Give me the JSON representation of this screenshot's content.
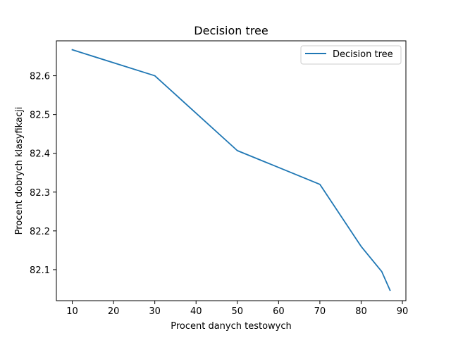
{
  "chart_data": {
    "type": "line",
    "title": "Decision tree",
    "xlabel": "Procent danych testowych",
    "ylabel": "Procent dobrych klasyfikacji",
    "xlim": [
      6.15,
      90.85
    ],
    "ylim": [
      82.02,
      82.69
    ],
    "xticks": [
      10,
      20,
      30,
      40,
      50,
      60,
      70,
      80,
      90
    ],
    "yticks": [
      82.1,
      82.2,
      82.3,
      82.4,
      82.5,
      82.6
    ],
    "grid": false,
    "legend_position": "top-right",
    "series": [
      {
        "name": "Decision tree",
        "color": "#1f77b4",
        "x": [
          10,
          30,
          50,
          70,
          80,
          85,
          87
        ],
        "y": [
          82.667,
          82.6,
          82.407,
          82.32,
          82.16,
          82.095,
          82.047
        ]
      }
    ]
  }
}
